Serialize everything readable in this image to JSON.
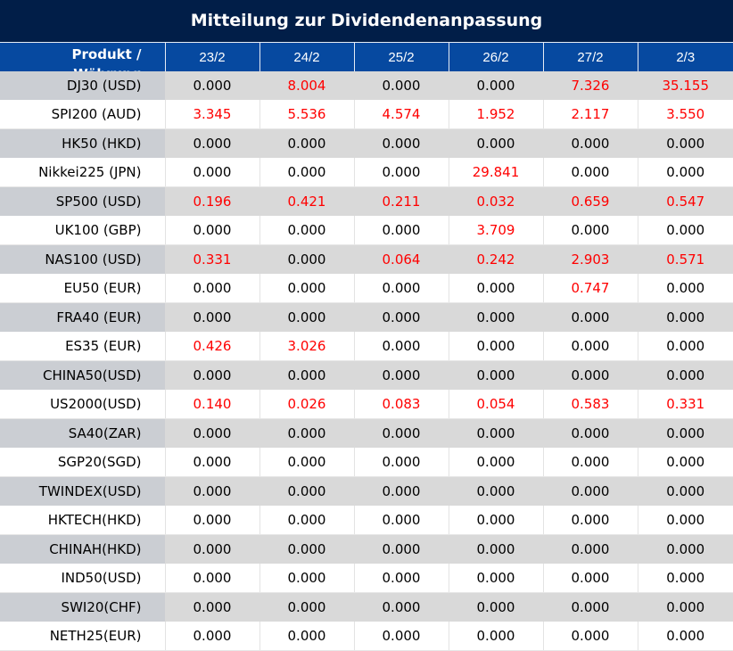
{
  "title": "Mitteilung zur Dividendenanpassung",
  "header": {
    "product": "Produkt / Währung",
    "dates": [
      "23/2",
      "24/2",
      "25/2",
      "26/2",
      "27/2",
      "2/3"
    ]
  },
  "colors": {
    "title_bg": "#011e48",
    "header_bg": "#0649a0",
    "positive": "#ff0000"
  },
  "rows": [
    {
      "product": "DJ30 (USD)",
      "values": [
        "0.000",
        "8.004",
        "0.000",
        "0.000",
        "7.326",
        "35.155"
      ]
    },
    {
      "product": "SPI200 (AUD)",
      "values": [
        "3.345",
        "5.536",
        "4.574",
        "1.952",
        "2.117",
        "3.550"
      ]
    },
    {
      "product": "HK50 (HKD)",
      "values": [
        "0.000",
        "0.000",
        "0.000",
        "0.000",
        "0.000",
        "0.000"
      ]
    },
    {
      "product": "Nikkei225 (JPN)",
      "values": [
        "0.000",
        "0.000",
        "0.000",
        "29.841",
        "0.000",
        "0.000"
      ]
    },
    {
      "product": "SP500 (USD)",
      "values": [
        "0.196",
        "0.421",
        "0.211",
        "0.032",
        "0.659",
        "0.547"
      ]
    },
    {
      "product": "UK100 (GBP)",
      "values": [
        "0.000",
        "0.000",
        "0.000",
        "3.709",
        "0.000",
        "0.000"
      ]
    },
    {
      "product": "NAS100 (USD)",
      "values": [
        "0.331",
        "0.000",
        "0.064",
        "0.242",
        "2.903",
        "0.571"
      ]
    },
    {
      "product": "EU50 (EUR)",
      "values": [
        "0.000",
        "0.000",
        "0.000",
        "0.000",
        "0.747",
        "0.000"
      ]
    },
    {
      "product": "FRA40 (EUR)",
      "values": [
        "0.000",
        "0.000",
        "0.000",
        "0.000",
        "0.000",
        "0.000"
      ]
    },
    {
      "product": "ES35 (EUR)",
      "values": [
        "0.426",
        "3.026",
        "0.000",
        "0.000",
        "0.000",
        "0.000"
      ]
    },
    {
      "product": "CHINA50(USD)",
      "values": [
        "0.000",
        "0.000",
        "0.000",
        "0.000",
        "0.000",
        "0.000"
      ]
    },
    {
      "product": "US2000(USD)",
      "values": [
        "0.140",
        "0.026",
        "0.083",
        "0.054",
        "0.583",
        "0.331"
      ]
    },
    {
      "product": "SA40(ZAR)",
      "values": [
        "0.000",
        "0.000",
        "0.000",
        "0.000",
        "0.000",
        "0.000"
      ]
    },
    {
      "product": "SGP20(SGD)",
      "values": [
        "0.000",
        "0.000",
        "0.000",
        "0.000",
        "0.000",
        "0.000"
      ]
    },
    {
      "product": "TWINDEX(USD)",
      "values": [
        "0.000",
        "0.000",
        "0.000",
        "0.000",
        "0.000",
        "0.000"
      ]
    },
    {
      "product": "HKTECH(HKD)",
      "values": [
        "0.000",
        "0.000",
        "0.000",
        "0.000",
        "0.000",
        "0.000"
      ]
    },
    {
      "product": "CHINAH(HKD)",
      "values": [
        "0.000",
        "0.000",
        "0.000",
        "0.000",
        "0.000",
        "0.000"
      ]
    },
    {
      "product": "IND50(USD)",
      "values": [
        "0.000",
        "0.000",
        "0.000",
        "0.000",
        "0.000",
        "0.000"
      ]
    },
    {
      "product": "SWI20(CHF)",
      "values": [
        "0.000",
        "0.000",
        "0.000",
        "0.000",
        "0.000",
        "0.000"
      ]
    },
    {
      "product": "NETH25(EUR)",
      "values": [
        "0.000",
        "0.000",
        "0.000",
        "0.000",
        "0.000",
        "0.000"
      ]
    }
  ]
}
